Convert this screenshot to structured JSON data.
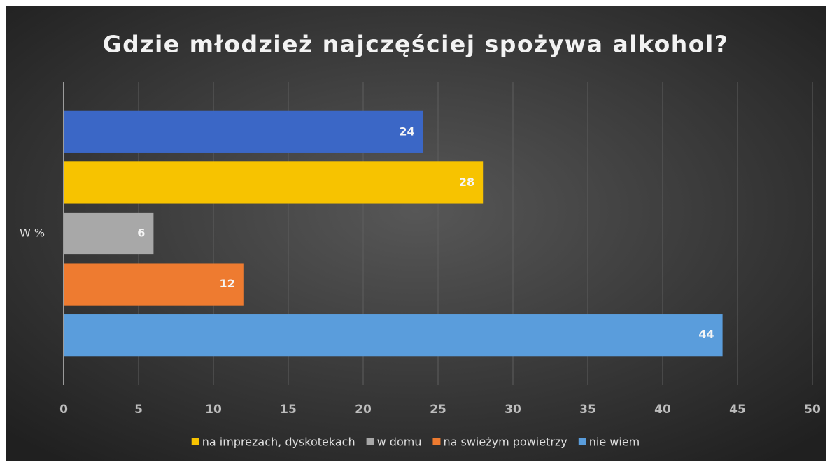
{
  "chart_data": {
    "type": "bar",
    "orientation": "horizontal",
    "title": "Gdzie młodzież najczęściej spożywa alkohol?",
    "categories": [
      "W %"
    ],
    "series": [
      {
        "color": "#3b67c6",
        "values": [
          24
        ]
      },
      {
        "name": "na imprezach, dyskotekach",
        "color": "#f7c300",
        "values": [
          28
        ]
      },
      {
        "name": "w domu",
        "color": "#a8a8a8",
        "values": [
          6
        ]
      },
      {
        "name": "na swieżym powietrzy",
        "color": "#ee7b30",
        "values": [
          12
        ]
      },
      {
        "name": "nie wiem",
        "color": "#5a9ddc",
        "values": [
          44
        ]
      }
    ],
    "xlim": [
      0,
      50
    ],
    "xticks": [
      0,
      5,
      10,
      15,
      20,
      25,
      30,
      35,
      40,
      45,
      50
    ],
    "grid": true,
    "legend": "bottom"
  }
}
